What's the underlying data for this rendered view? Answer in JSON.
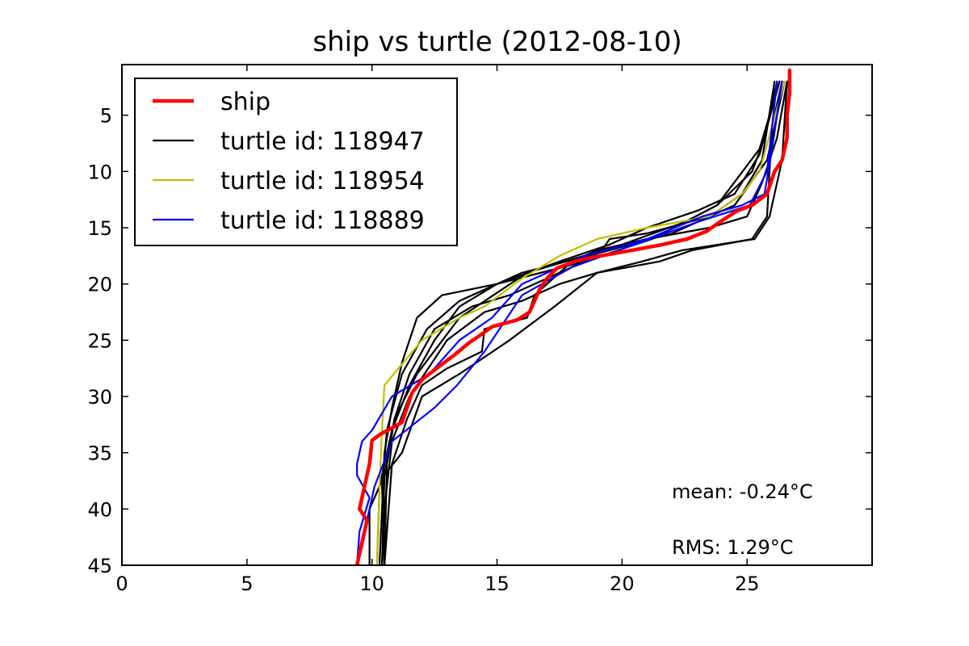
{
  "chart_data": {
    "type": "line",
    "title": "ship vs turtle (2012-08-10)",
    "xlabel": "",
    "ylabel": "",
    "xlim": [
      0,
      30
    ],
    "ylim": [
      45,
      0.5
    ],
    "y_inverted": true,
    "grid": false,
    "legend_position": "top-left",
    "x_ticks": [
      0,
      5,
      10,
      15,
      20,
      25
    ],
    "y_ticks": [
      5,
      10,
      15,
      20,
      25,
      30,
      35,
      40,
      45
    ],
    "series": [
      {
        "name": "ship",
        "legend_label": "ship",
        "color": "#ff0000",
        "line_width": "thick",
        "in_legend": true,
        "points": [
          [
            26.7,
            1
          ],
          [
            26.7,
            3
          ],
          [
            26.6,
            5
          ],
          [
            26.6,
            7
          ],
          [
            26.4,
            9
          ],
          [
            26.1,
            10
          ],
          [
            25.8,
            12
          ],
          [
            25.2,
            13
          ],
          [
            24.6,
            13.5
          ],
          [
            23.9,
            14.5
          ],
          [
            23.4,
            15.3
          ],
          [
            22.6,
            16
          ],
          [
            21.6,
            16.5
          ],
          [
            20.4,
            17
          ],
          [
            18.9,
            17.6
          ],
          [
            18.1,
            18
          ],
          [
            17.4,
            18.6
          ],
          [
            17.0,
            19.5
          ],
          [
            16.7,
            20.5
          ],
          [
            16.5,
            21.5
          ],
          [
            16.3,
            22.5
          ],
          [
            15.8,
            23.2
          ],
          [
            14.8,
            23.8
          ],
          [
            14.3,
            24.6
          ],
          [
            13.9,
            25.2
          ],
          [
            13.3,
            26.3
          ],
          [
            12.7,
            27.3
          ],
          [
            12.0,
            28.5
          ],
          [
            11.6,
            29.7
          ],
          [
            11.4,
            31.0
          ],
          [
            11.2,
            32.3
          ],
          [
            10.8,
            32.8
          ],
          [
            10.3,
            33.4
          ],
          [
            10.0,
            33.9
          ],
          [
            9.9,
            36
          ],
          [
            9.7,
            38
          ],
          [
            9.5,
            40
          ],
          [
            9.8,
            41
          ],
          [
            9.6,
            43
          ],
          [
            9.4,
            45
          ]
        ]
      },
      {
        "name": "turtle id: 118947",
        "legend_label": "turtle id: 118947",
        "color": "#000000",
        "line_width": "normal",
        "in_legend": true,
        "points": [
          [
            26.5,
            2
          ],
          [
            25.8,
            9
          ],
          [
            24.5,
            13
          ],
          [
            22,
            15.5
          ],
          [
            19.5,
            17
          ],
          [
            16,
            19
          ],
          [
            13.5,
            21.5
          ],
          [
            12.2,
            24
          ],
          [
            11.2,
            28
          ],
          [
            10.6,
            33
          ],
          [
            10.4,
            38
          ],
          [
            10.5,
            45
          ]
        ]
      },
      {
        "name": "turtle 118947 profile 2",
        "color": "#000000",
        "line_width": "normal",
        "in_legend": false,
        "points": [
          [
            26.3,
            2
          ],
          [
            25.5,
            8
          ],
          [
            23.8,
            13
          ],
          [
            21.2,
            16
          ],
          [
            18.5,
            18
          ],
          [
            15.0,
            20
          ],
          [
            12.8,
            21
          ],
          [
            11.8,
            23
          ],
          [
            11.2,
            27
          ],
          [
            10.8,
            31
          ],
          [
            10.5,
            35
          ],
          [
            10.4,
            40
          ],
          [
            10.3,
            45
          ]
        ]
      },
      {
        "name": "turtle 118947 profile 3",
        "color": "#000000",
        "line_width": "normal",
        "in_legend": false,
        "points": [
          [
            26.2,
            2
          ],
          [
            25.7,
            7
          ],
          [
            25.2,
            10
          ],
          [
            23.8,
            13
          ],
          [
            22.5,
            14.5
          ],
          [
            20.0,
            16.5
          ],
          [
            16.2,
            19
          ],
          [
            13.5,
            23
          ],
          [
            11.8,
            28
          ],
          [
            10.9,
            32
          ],
          [
            10.5,
            37
          ],
          [
            10.4,
            45
          ]
        ]
      },
      {
        "name": "turtle 118947 profile 4",
        "color": "#000000",
        "line_width": "normal",
        "in_legend": false,
        "points": [
          [
            26.4,
            2
          ],
          [
            26.0,
            6
          ],
          [
            25.8,
            14
          ],
          [
            25.2,
            16
          ],
          [
            22.8,
            17
          ],
          [
            21.5,
            18
          ],
          [
            19.0,
            19
          ],
          [
            17.5,
            20
          ],
          [
            16.0,
            21.5
          ],
          [
            14.5,
            22.5
          ],
          [
            13.0,
            25
          ],
          [
            11.5,
            30
          ],
          [
            10.8,
            34
          ],
          [
            10.5,
            40
          ],
          [
            10.4,
            45
          ]
        ]
      },
      {
        "name": "turtle 118947 profile 5",
        "color": "#000000",
        "line_width": "normal",
        "in_legend": false,
        "points": [
          [
            26.1,
            2
          ],
          [
            25.6,
            9
          ],
          [
            24.8,
            12
          ],
          [
            23.5,
            14
          ],
          [
            21.0,
            15.5
          ],
          [
            19.5,
            16
          ],
          [
            19.2,
            17
          ],
          [
            18.5,
            18
          ],
          [
            17.0,
            19.5
          ],
          [
            15.5,
            21
          ],
          [
            14.0,
            22
          ],
          [
            12.5,
            24
          ],
          [
            11.5,
            28
          ],
          [
            10.9,
            32
          ],
          [
            10.6,
            36
          ],
          [
            10.5,
            45
          ]
        ]
      },
      {
        "name": "turtle 118947 profile 6",
        "color": "#000000",
        "line_width": "normal",
        "in_legend": false,
        "points": [
          [
            26.6,
            2
          ],
          [
            26.2,
            7
          ],
          [
            25.6,
            11
          ],
          [
            25.0,
            14
          ],
          [
            23.5,
            15
          ],
          [
            21.0,
            16
          ],
          [
            19.0,
            17
          ],
          [
            18.0,
            18
          ],
          [
            17.0,
            20
          ],
          [
            16.5,
            21
          ],
          [
            16.2,
            23
          ],
          [
            14.5,
            24
          ],
          [
            14.4,
            26
          ],
          [
            13.0,
            27.5
          ],
          [
            12.0,
            29
          ],
          [
            11.4,
            32
          ],
          [
            10.8,
            36
          ],
          [
            10.5,
            45
          ]
        ]
      },
      {
        "name": "turtle 118947 profile 7",
        "color": "#000000",
        "line_width": "normal",
        "in_legend": false,
        "points": [
          [
            26.6,
            2
          ],
          [
            26.4,
            9
          ],
          [
            25.9,
            14
          ],
          [
            25.3,
            16
          ],
          [
            22.4,
            17
          ],
          [
            20.8,
            18
          ],
          [
            19.0,
            19
          ],
          [
            17.3,
            22
          ],
          [
            15.5,
            25
          ],
          [
            13.5,
            28
          ],
          [
            12.0,
            30
          ],
          [
            11.2,
            35
          ],
          [
            10.5,
            37
          ],
          [
            9.9,
            40
          ],
          [
            9.9,
            45
          ]
        ]
      },
      {
        "name": "turtle 118947 profile 8",
        "color": "#000000",
        "line_width": "normal",
        "in_legend": false,
        "points": [
          [
            26.3,
            2
          ],
          [
            25.5,
            8.5
          ],
          [
            24.5,
            12
          ],
          [
            23.0,
            13.5
          ],
          [
            21.0,
            15
          ],
          [
            19.5,
            16.5
          ],
          [
            17.5,
            18
          ],
          [
            15.0,
            20
          ],
          [
            13.5,
            22
          ],
          [
            12.5,
            25
          ],
          [
            11.5,
            29
          ],
          [
            10.8,
            33
          ],
          [
            10.3,
            38
          ],
          [
            10.2,
            45
          ]
        ]
      },
      {
        "name": "turtle id: 118954",
        "legend_label": "turtle id: 118954",
        "color": "#bfbf00",
        "line_width": "normal",
        "in_legend": true,
        "points": [
          [
            26.5,
            2
          ],
          [
            26.0,
            6
          ],
          [
            25.5,
            10
          ],
          [
            24.8,
            12
          ],
          [
            23.5,
            14
          ],
          [
            21.0,
            15
          ],
          [
            19.0,
            16
          ],
          [
            17.5,
            17.5
          ],
          [
            16.0,
            19.5
          ],
          [
            14.5,
            22
          ],
          [
            13.5,
            23
          ],
          [
            12.0,
            25
          ],
          [
            10.5,
            29
          ],
          [
            10.4,
            33
          ],
          [
            10.3,
            38
          ],
          [
            10.2,
            45
          ]
        ]
      },
      {
        "name": "turtle id: 118889",
        "legend_label": "turtle id: 118889",
        "color": "#0000ff",
        "line_width": "normal",
        "in_legend": true,
        "points": [
          [
            26.4,
            2
          ],
          [
            26.0,
            8
          ],
          [
            25.7,
            12
          ],
          [
            24.8,
            13
          ],
          [
            23.2,
            14
          ],
          [
            21.0,
            16
          ],
          [
            18.5,
            17.5
          ],
          [
            16.0,
            20
          ],
          [
            14.8,
            23
          ],
          [
            13.5,
            25
          ],
          [
            12.3,
            28
          ],
          [
            10.8,
            30
          ],
          [
            10.0,
            33
          ],
          [
            9.6,
            34
          ],
          [
            9.4,
            36
          ],
          [
            9.4,
            37
          ],
          [
            9.9,
            39
          ],
          [
            9.5,
            42
          ],
          [
            9.4,
            45
          ]
        ]
      },
      {
        "name": "turtle 118889 profile 2",
        "color": "#0000ff",
        "line_width": "normal",
        "in_legend": false,
        "points": [
          [
            26.2,
            2
          ],
          [
            25.8,
            10
          ],
          [
            25.1,
            13
          ],
          [
            23.0,
            14.5
          ],
          [
            20.5,
            16.5
          ],
          [
            18.0,
            18.5
          ],
          [
            16.0,
            21
          ],
          [
            14.5,
            26
          ],
          [
            13.4,
            29
          ],
          [
            12.5,
            31
          ],
          [
            10.8,
            34
          ],
          [
            10.1,
            38
          ],
          [
            9.8,
            41
          ],
          [
            9.4,
            45
          ]
        ]
      }
    ],
    "annotations": [
      "mean: -0.24°C",
      "RMS: 1.29°C"
    ]
  }
}
